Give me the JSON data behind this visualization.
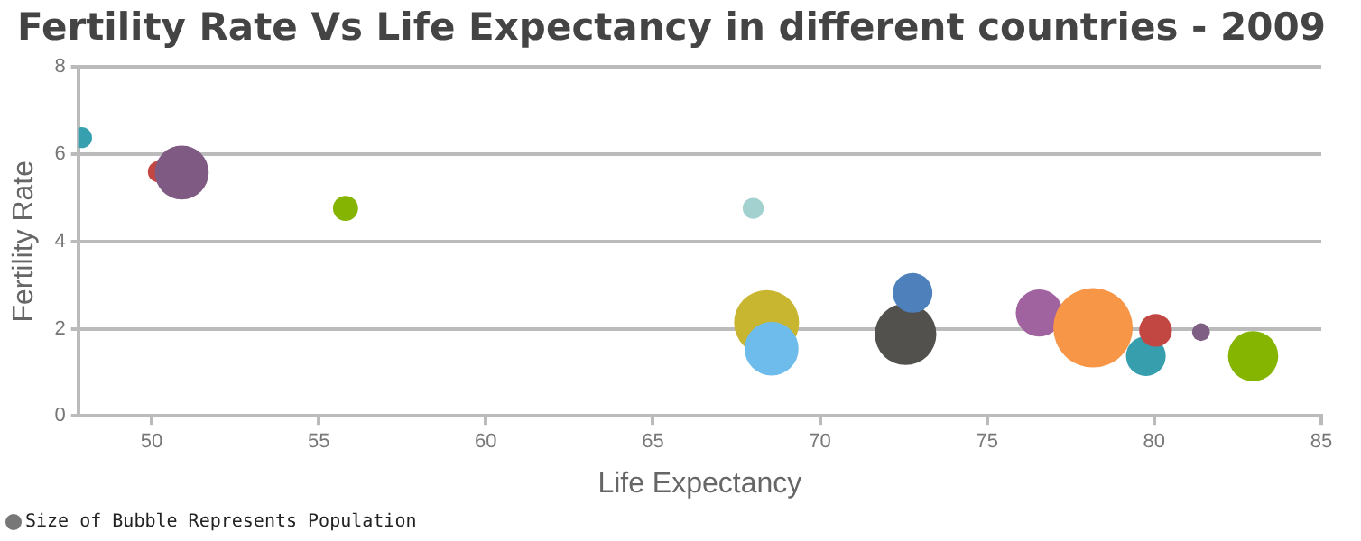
{
  "chart_data": {
    "type": "bubble",
    "title": "Fertility Rate Vs Life Expectancy in different countries - 2009",
    "xlabel": "Life Expectancy",
    "ylabel": "Fertility Rate",
    "x": [
      47.9,
      50.2,
      50.9,
      55.8,
      68.0,
      68.4,
      68.55,
      72.56,
      72.77,
      76.56,
      78.17,
      79.75,
      80.04,
      81.4,
      82.96
    ],
    "values": [
      6.38,
      5.6,
      5.58,
      4.76,
      4.76,
      2.14,
      1.54,
      1.87,
      2.82,
      2.36,
      2.02,
      1.37,
      1.96,
      1.92,
      1.37
    ],
    "sizes": [
      0.07,
      0.07,
      0.46,
      0.1,
      0.07,
      0.67,
      0.46,
      0.6,
      0.25,
      0.35,
      1,
      0.25,
      0.17,
      0.05,
      0.4
    ],
    "colors": [
      "#36a0ae",
      "#c24642",
      "#7f5a83",
      "#86b402",
      "#a2d1cf",
      "#c8b631",
      "#6dbceb",
      "#52514e",
      "#4e81bc",
      "#a063a0",
      "#f79647",
      "#369ead",
      "#c24642",
      "#7f6084",
      "#85b401"
    ],
    "xlim": [
      47.8,
      85
    ],
    "xticks": [
      50,
      55,
      60,
      65,
      70,
      75,
      80,
      85
    ],
    "ylim": [
      0,
      8
    ],
    "yticks": [
      0,
      2,
      4,
      6,
      8
    ],
    "grid": "y",
    "annotations": [
      "Size of Bubble Represents Population"
    ]
  }
}
